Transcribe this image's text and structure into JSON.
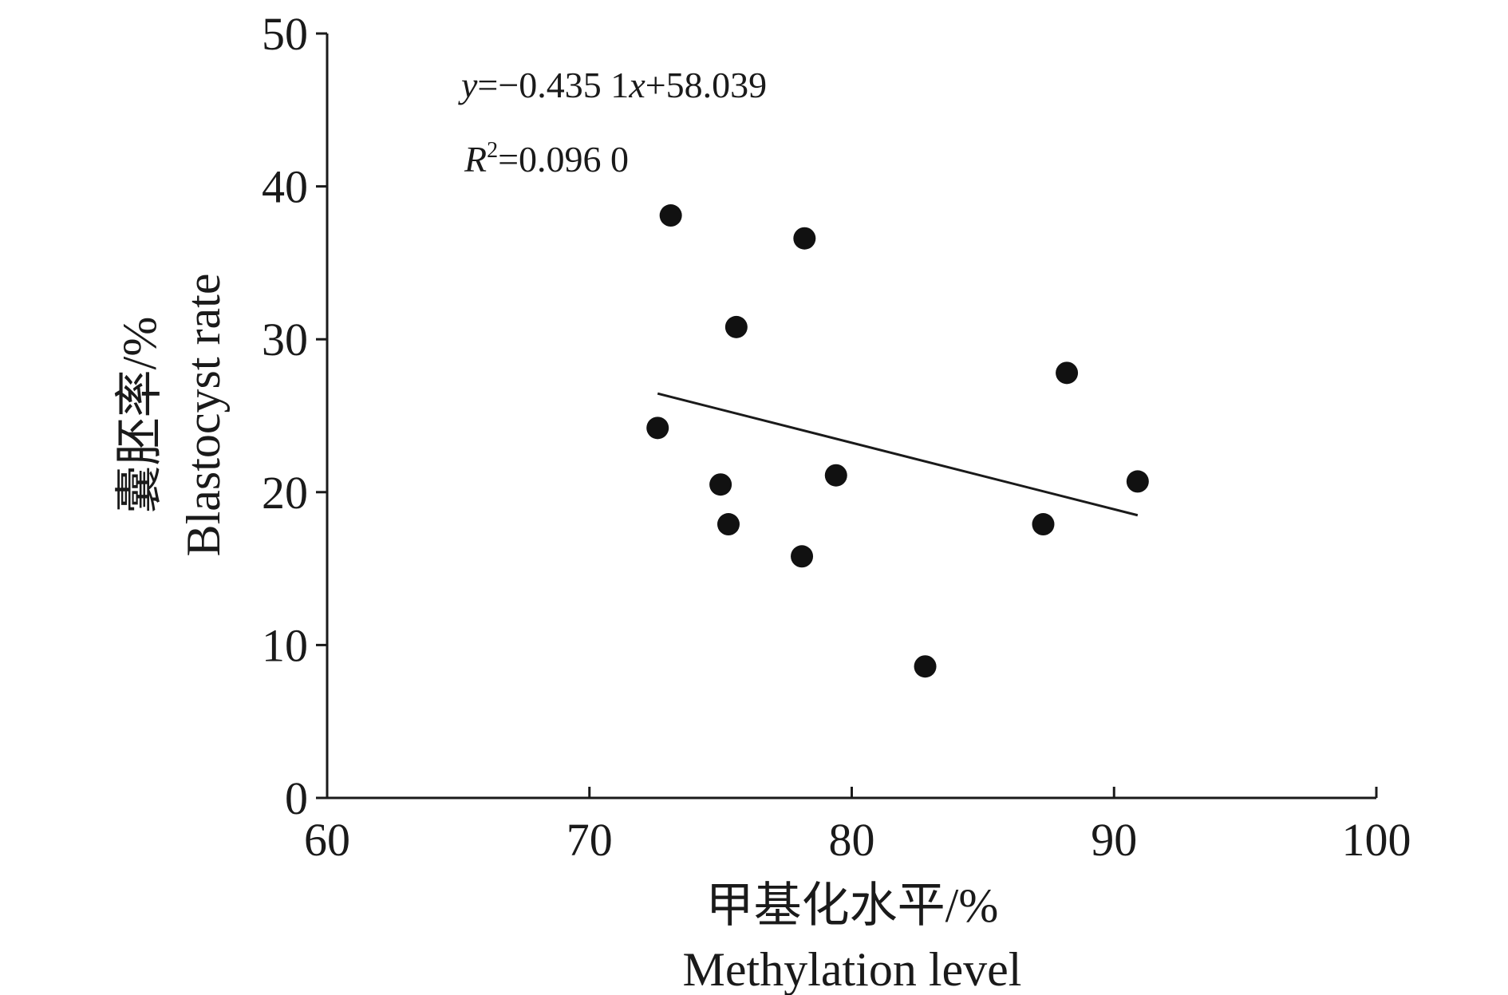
{
  "chart_data": {
    "type": "scatter",
    "x_axis": {
      "label_cn": "甲基化水平/%",
      "label_en": "Methylation level",
      "range": [
        60,
        100
      ],
      "ticks": [
        60,
        70,
        80,
        90,
        100
      ],
      "tick_labels": [
        "60",
        "70",
        "80",
        "90",
        "100"
      ]
    },
    "y_axis": {
      "label_cn": "囊胚率/%",
      "label_en": "Blastocyst rate",
      "range": [
        0,
        50
      ],
      "ticks": [
        0,
        10,
        20,
        30,
        40,
        50
      ],
      "tick_labels": [
        "0",
        "10",
        "20",
        "30",
        "40",
        "50"
      ]
    },
    "series": [
      {
        "points": [
          {
            "x": 72.6,
            "y": 24.2
          },
          {
            "x": 73.1,
            "y": 38.1
          },
          {
            "x": 75.0,
            "y": 20.5
          },
          {
            "x": 75.3,
            "y": 17.9
          },
          {
            "x": 75.6,
            "y": 30.8
          },
          {
            "x": 78.1,
            "y": 15.8
          },
          {
            "x": 78.2,
            "y": 36.6
          },
          {
            "x": 79.4,
            "y": 21.1
          },
          {
            "x": 82.8,
            "y": 8.6
          },
          {
            "x": 87.3,
            "y": 17.9
          },
          {
            "x": 88.2,
            "y": 27.8
          },
          {
            "x": 90.9,
            "y": 20.7
          }
        ]
      }
    ],
    "trendline": {
      "x_start": 72.6,
      "x_end": 90.9,
      "slope": -0.4351,
      "intercept": 58.039
    },
    "annotations": {
      "equation": {
        "var_y": "y",
        "rest1": "=−0.435 1",
        "var_x": "x",
        "rest2": "+58.039"
      },
      "r_squared": {
        "var_r": "R",
        "sup": "2",
        "rest": "=0.096 0"
      }
    },
    "grid": false,
    "legend": "none"
  }
}
